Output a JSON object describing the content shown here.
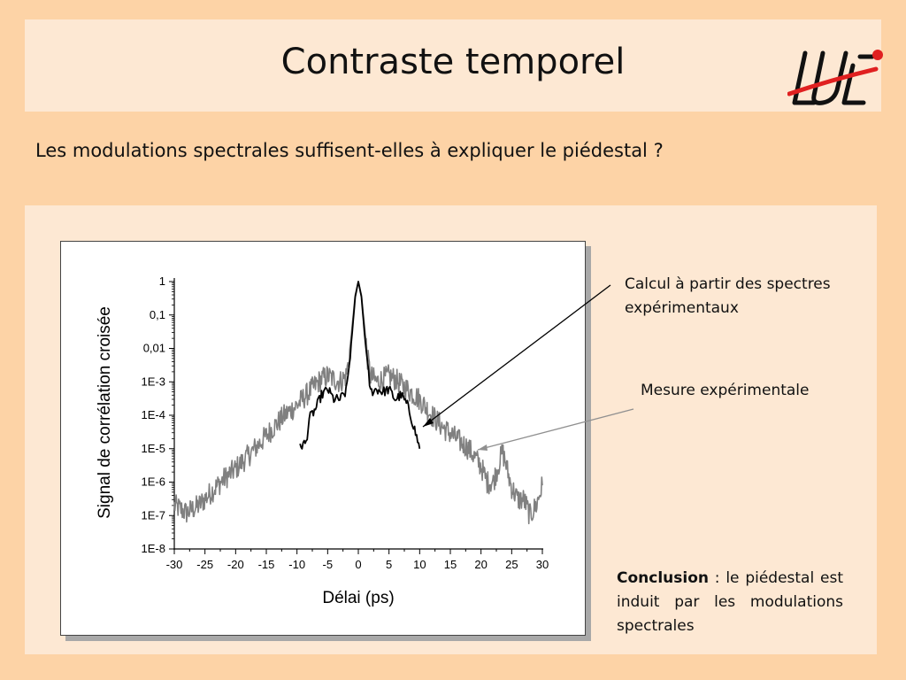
{
  "slide": {
    "title": "Contraste temporel",
    "question": "Les modulations spectrales suffisent-elles à expliquer le piédestal ?"
  },
  "annotations": {
    "calcul": "Calcul à partir des spectres expérimentaux",
    "mesure": "Mesure expérimentale"
  },
  "conclusion": {
    "label": "Conclusion",
    "text": " : le piédestal est induit par les modulations spectrales"
  },
  "colors": {
    "slide_background": "#fdd3a6",
    "panel_background": "#fde8d3",
    "measured_series": "#808080",
    "calculated_series": "#000000",
    "logo_red": "#e02020"
  },
  "logo": {
    "icon": "lu-logo-icon"
  },
  "chart_data": {
    "type": "line",
    "xlabel": "Délai (ps)",
    "ylabel": "Signal de corrélation croisée",
    "x_ticks": [
      "-30",
      "-25",
      "-20",
      "-15",
      "-10",
      "-5",
      "0",
      "5",
      "10",
      "15",
      "20",
      "25",
      "30"
    ],
    "y_ticks": [
      "1E-8",
      "1E-7",
      "1E-6",
      "1E-5",
      "1E-4",
      "1E-3",
      "0,01",
      "0,1",
      "1"
    ],
    "xlim": [
      -30,
      30
    ],
    "ylim": [
      1e-08,
      1
    ],
    "y_scale": "log",
    "grid": false,
    "series": [
      {
        "id": "measured",
        "color": "#808080",
        "x": [
          -30,
          -28,
          -26,
          -24,
          -22,
          -20,
          -18,
          -16,
          -14,
          -12,
          -10,
          -8,
          -7,
          -6,
          -5,
          -4,
          -3,
          -2,
          -1.5,
          -1,
          -0.5,
          0,
          0.5,
          1,
          1.5,
          2,
          3,
          4,
          5,
          6,
          7,
          8,
          10,
          12,
          14,
          16,
          18,
          20,
          21,
          22,
          23,
          23.5,
          24,
          24.5,
          25,
          26,
          27,
          28,
          29,
          30
        ],
        "y": [
          2e-07,
          1.2e-07,
          2e-07,
          5e-07,
          1.2e-06,
          2.5e-06,
          6e-06,
          1.5e-05,
          4e-05,
          0.0001,
          0.0002,
          0.0005,
          0.0008,
          0.0012,
          0.0015,
          0.0012,
          0.001,
          0.0015,
          0.005,
          0.05,
          0.4,
          1,
          0.4,
          0.05,
          0.005,
          0.0015,
          0.001,
          0.0012,
          0.0015,
          0.0012,
          0.0008,
          0.0006,
          0.0003,
          0.0001,
          4e-05,
          2e-05,
          1e-05,
          3e-06,
          1e-06,
          1e-06,
          4e-06,
          8e-06,
          4e-06,
          1.5e-06,
          7e-07,
          3e-07,
          3e-07,
          1e-07,
          2e-07,
          8e-07
        ]
      },
      {
        "id": "calculated",
        "color": "#000000",
        "x": [
          -9.5,
          -8.5,
          -8,
          -7,
          -6,
          -5,
          -4,
          -3,
          -2,
          -1.5,
          -1,
          -0.5,
          0,
          0.5,
          1,
          1.5,
          2,
          3,
          4,
          5,
          6,
          7,
          8,
          9,
          10
        ],
        "y": [
          1.2e-05,
          1.5e-05,
          8e-05,
          0.00015,
          0.0004,
          0.0006,
          0.0003,
          0.0003,
          0.0005,
          0.003,
          0.03,
          0.35,
          1,
          0.35,
          0.03,
          0.003,
          0.0005,
          0.0006,
          0.0005,
          0.0006,
          0.0003,
          0.0004,
          0.0002,
          5e-05,
          1e-05
        ]
      }
    ]
  }
}
